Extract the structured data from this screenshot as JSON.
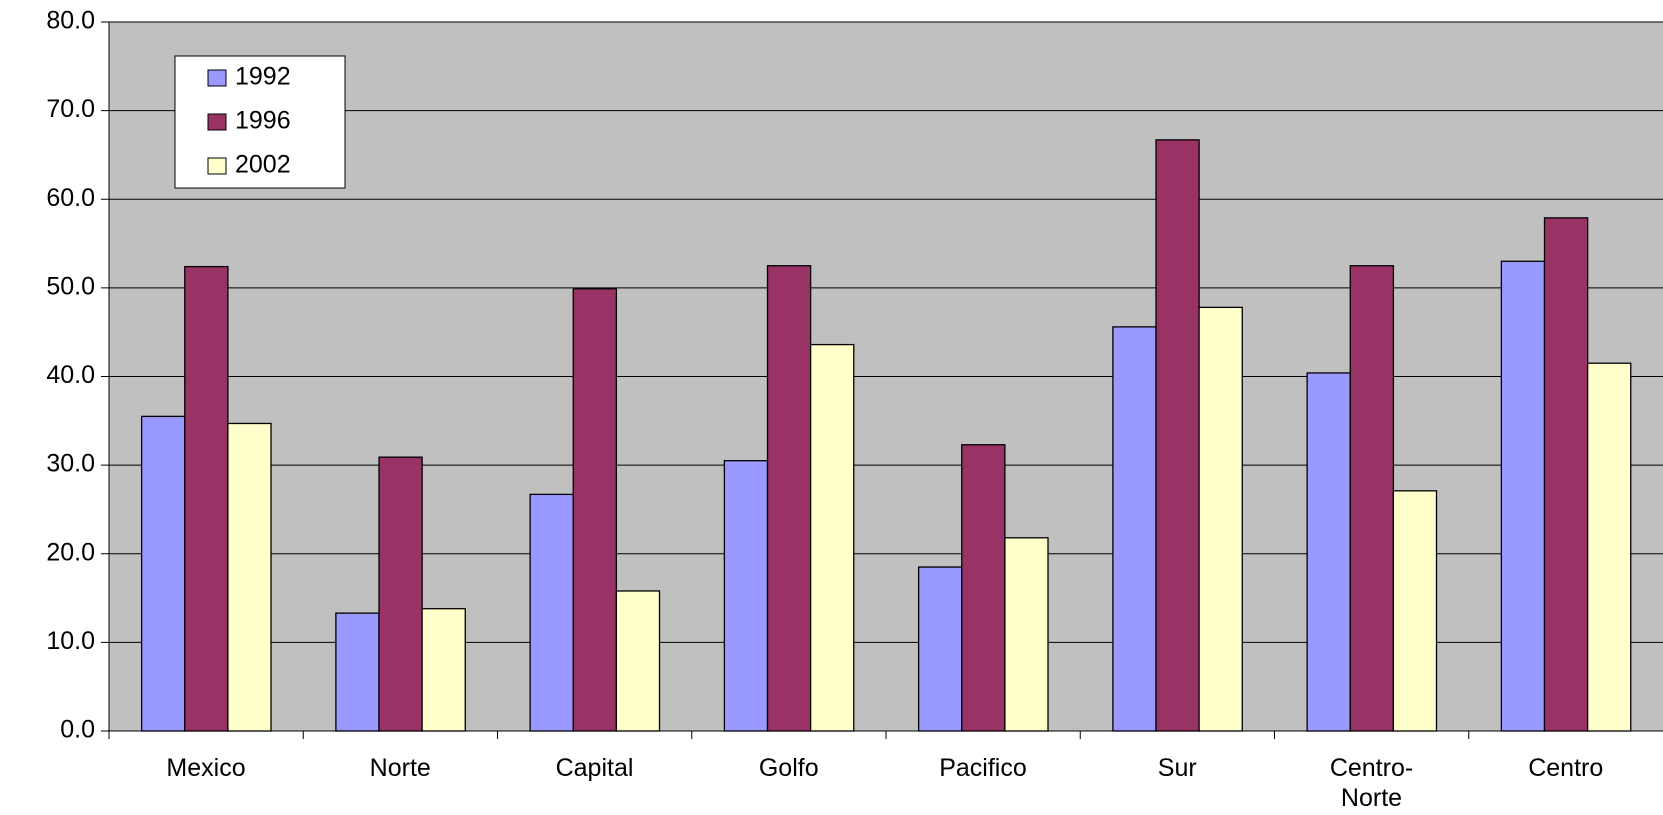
{
  "chart_data": {
    "type": "bar",
    "categories": [
      "Mexico",
      "Norte",
      "Capital",
      "Golfo",
      "Pacifico",
      "Sur",
      "Centro-\nNorte",
      "Centro"
    ],
    "series": [
      {
        "name": "1992",
        "color": "#9999ff",
        "values": [
          35.5,
          13.3,
          26.7,
          30.5,
          18.5,
          45.6,
          40.4,
          53.0
        ]
      },
      {
        "name": "1996",
        "color": "#993366",
        "values": [
          52.4,
          30.9,
          49.9,
          52.5,
          32.3,
          66.7,
          52.5,
          57.9
        ]
      },
      {
        "name": "2002",
        "color": "#ffffcc",
        "values": [
          34.7,
          13.8,
          15.8,
          43.6,
          21.8,
          47.8,
          27.1,
          41.5
        ]
      }
    ],
    "ylim": [
      0,
      80
    ],
    "yticks": [
      {
        "value": 0,
        "label": "0.0"
      },
      {
        "value": 10,
        "label": "10.0"
      },
      {
        "value": 20,
        "label": "20.0"
      },
      {
        "value": 30,
        "label": "30.0"
      },
      {
        "value": 40,
        "label": "40.0"
      },
      {
        "value": 50,
        "label": "50.0"
      },
      {
        "value": 60,
        "label": "60.0"
      },
      {
        "value": 70,
        "label": "70.0"
      },
      {
        "value": 80,
        "label": "80.0"
      }
    ],
    "grid": true,
    "plot_background": "#c0c0c0",
    "legend": "upper left"
  }
}
